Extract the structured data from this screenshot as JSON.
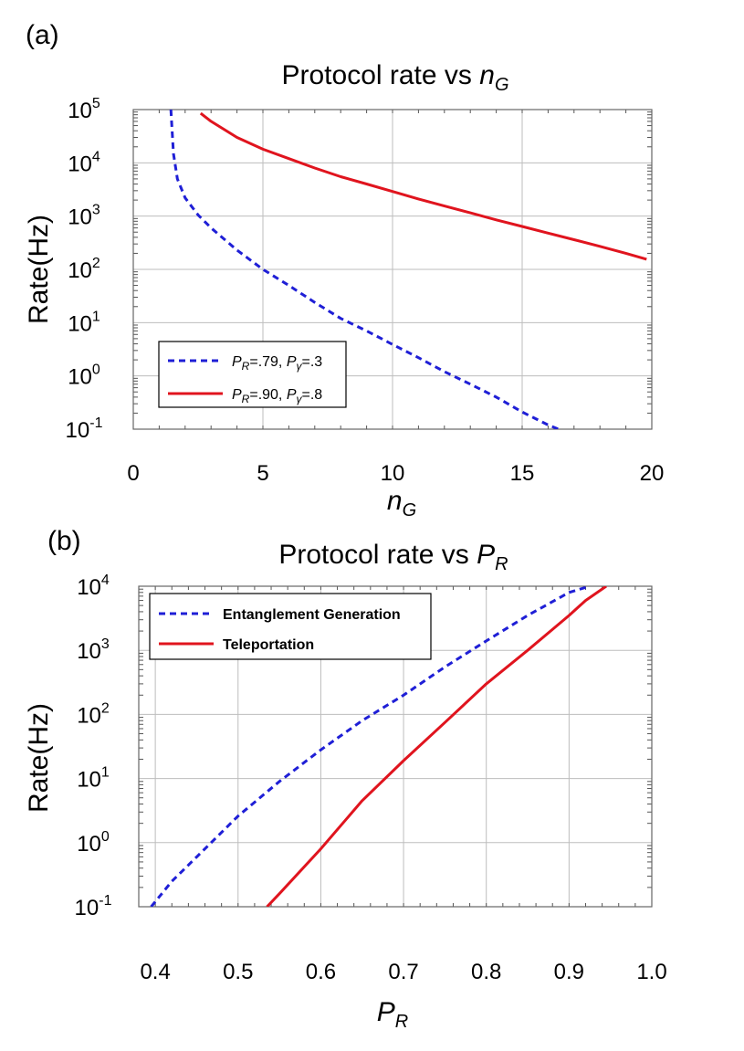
{
  "chart_data": [
    {
      "panel_label": "(a)",
      "type": "line",
      "title": "Protocol rate vs",
      "title_var": "n",
      "title_sub": "G",
      "xlabel_var": "n",
      "xlabel_sub": "G",
      "ylabel": "Rate(Hz)",
      "xlim": [
        0,
        20
      ],
      "ylim": [
        0.1,
        100000
      ],
      "yscale": "log",
      "grid": true,
      "legend_position": "bottom-left",
      "x_ticks": [
        {
          "value": 0,
          "label": "0"
        },
        {
          "value": 5,
          "label": "5"
        },
        {
          "value": 10,
          "label": "10"
        },
        {
          "value": 15,
          "label": "15"
        },
        {
          "value": 20,
          "label": "20"
        }
      ],
      "y_ticks": [
        {
          "value": 100000,
          "base": "10",
          "exp": "5"
        },
        {
          "value": 10000,
          "base": "10",
          "exp": "4"
        },
        {
          "value": 1000,
          "base": "10",
          "exp": "3"
        },
        {
          "value": 100,
          "base": "10",
          "exp": "2"
        },
        {
          "value": 10,
          "base": "10",
          "exp": "1"
        },
        {
          "value": 1,
          "base": "10",
          "exp": "0"
        },
        {
          "value": 0.1,
          "base": "10",
          "exp": "-1"
        }
      ],
      "series": [
        {
          "name": "P_R=.79, P_γ=.3",
          "legend": [
            {
              "t": "P",
              "style": "italic"
            },
            {
              "t": "R",
              "style": "sub"
            },
            {
              "t": "=.79, "
            },
            {
              "t": "P",
              "style": "italic"
            },
            {
              "t": "γ",
              "style": "sub"
            },
            {
              "t": "=.3"
            }
          ],
          "color": "#1f1fd6",
          "dash": true,
          "x": [
            1.45,
            1.55,
            1.7,
            2.0,
            2.5,
            3.0,
            4.0,
            5.0,
            6.0,
            7.0,
            8.0,
            9.0,
            10.0,
            11.0,
            12.0,
            13.0,
            14.0,
            15.0,
            16.0,
            16.4
          ],
          "y": [
            100000,
            15000,
            5000,
            2200,
            1050,
            600,
            230,
            100,
            50,
            24,
            12,
            7,
            3.9,
            2.2,
            1.2,
            0.7,
            0.4,
            0.21,
            0.12,
            0.1
          ]
        },
        {
          "name": "P_R=.90, P_γ=.8",
          "legend": [
            {
              "t": "P",
              "style": "italic"
            },
            {
              "t": "R",
              "style": "sub"
            },
            {
              "t": "=.90, "
            },
            {
              "t": "P",
              "style": "italic"
            },
            {
              "t": "γ",
              "style": "sub"
            },
            {
              "t": "=.8"
            }
          ],
          "color": "#e0141e",
          "dash": false,
          "x": [
            2.6,
            3.0,
            4.0,
            5.0,
            6.0,
            7.0,
            8.0,
            9.0,
            10.0,
            11.0,
            12.0,
            13.0,
            14.0,
            15.0,
            16.0,
            17.0,
            18.0,
            19.0,
            19.8
          ],
          "y": [
            85000,
            60000,
            30000,
            18000,
            12000,
            8000,
            5500,
            4000,
            2900,
            2100,
            1550,
            1150,
            850,
            640,
            480,
            360,
            270,
            200,
            155
          ]
        }
      ]
    },
    {
      "panel_label": "(b)",
      "type": "line",
      "title": "Protocol rate vs",
      "title_var": "P",
      "title_sub": "R",
      "xlabel_var": "P",
      "xlabel_sub": "R",
      "ylabel": "Rate(Hz)",
      "xlim": [
        0.38,
        1.0
      ],
      "ylim": [
        0.1,
        10000
      ],
      "yscale": "log",
      "grid": true,
      "legend_position": "top-left",
      "x_ticks": [
        {
          "value": 0.4,
          "label": "0.4"
        },
        {
          "value": 0.5,
          "label": "0.5"
        },
        {
          "value": 0.6,
          "label": "0.6"
        },
        {
          "value": 0.7,
          "label": "0.7"
        },
        {
          "value": 0.8,
          "label": "0.8"
        },
        {
          "value": 0.9,
          "label": "0.9"
        },
        {
          "value": 1.0,
          "label": "1.0"
        }
      ],
      "y_ticks": [
        {
          "value": 10000,
          "base": "10",
          "exp": "4"
        },
        {
          "value": 1000,
          "base": "10",
          "exp": "3"
        },
        {
          "value": 100,
          "base": "10",
          "exp": "2"
        },
        {
          "value": 10,
          "base": "10",
          "exp": "1"
        },
        {
          "value": 1,
          "base": "10",
          "exp": "0"
        },
        {
          "value": 0.1,
          "base": "10",
          "exp": "-1"
        }
      ],
      "series": [
        {
          "name": "Entanglement Generation",
          "legend": [
            {
              "t": "Entanglement Generation"
            }
          ],
          "color": "#1f1fd6",
          "dash": true,
          "x": [
            0.395,
            0.42,
            0.45,
            0.5,
            0.55,
            0.6,
            0.65,
            0.7,
            0.75,
            0.8,
            0.85,
            0.9,
            0.925
          ],
          "y": [
            0.1,
            0.25,
            0.6,
            2.6,
            9,
            28,
            80,
            200,
            550,
            1400,
            3500,
            8000,
            10000
          ]
        },
        {
          "name": "Teleportation",
          "legend": [
            {
              "t": "Teleportation"
            }
          ],
          "color": "#e0141e",
          "dash": false,
          "x": [
            0.535,
            0.55,
            0.6,
            0.65,
            0.7,
            0.75,
            0.8,
            0.85,
            0.9,
            0.92,
            0.945
          ],
          "y": [
            0.1,
            0.16,
            0.8,
            4.5,
            19,
            75,
            300,
            1000,
            3500,
            6000,
            10000
          ]
        }
      ]
    }
  ]
}
